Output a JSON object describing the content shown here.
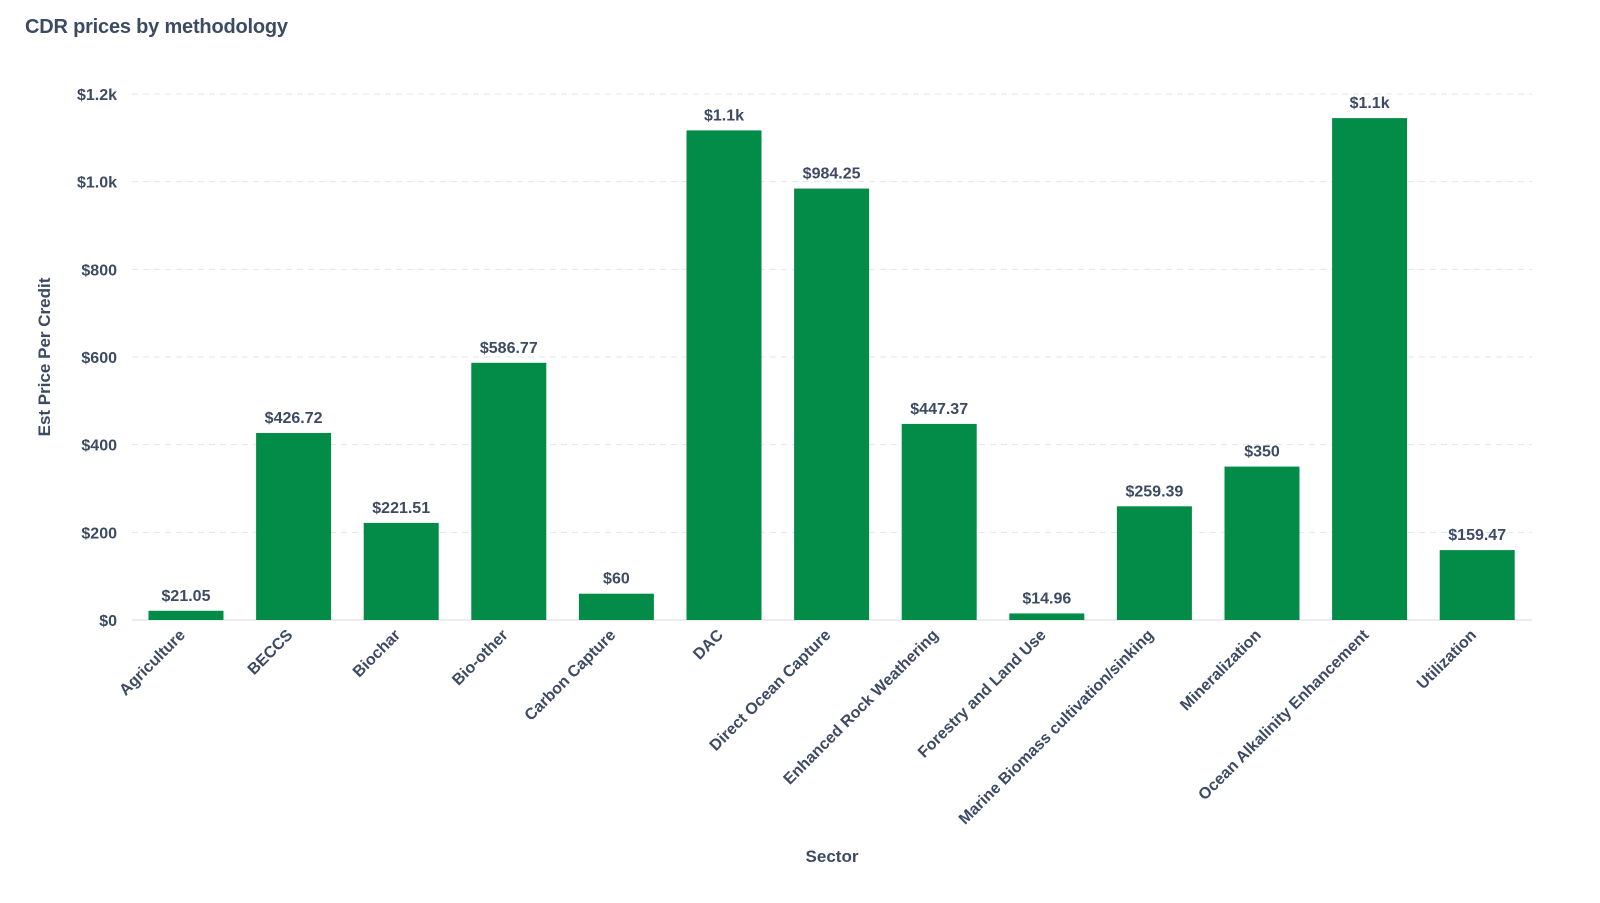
{
  "chart_data": {
    "type": "bar",
    "title": "CDR prices by methodology",
    "xlabel": "Sector",
    "ylabel": "Est Price Per Credit",
    "categories": [
      "Agriculture",
      "BECCS",
      "Biochar",
      "Bio-other",
      "Carbon Capture",
      "DAC",
      "Direct Ocean Capture",
      "Enhanced Rock Weathering",
      "Forestry and Land Use",
      "Marine Biomass cultivation/sinking",
      "Mineralization",
      "Ocean Alkalinity Enhancement",
      "Utilization"
    ],
    "values": [
      21.05,
      426.72,
      221.51,
      586.77,
      60,
      1117,
      984.25,
      447.37,
      14.96,
      259.39,
      350,
      1145,
      159.47
    ],
    "value_labels": [
      "$21.05",
      "$426.72",
      "$221.51",
      "$586.77",
      "$60",
      "$1.1k",
      "$984.25",
      "$447.37",
      "$14.96",
      "$259.39",
      "$350",
      "$1.1k",
      "$159.47"
    ],
    "y_ticks": [
      0,
      200,
      400,
      600,
      800,
      1000,
      1200
    ],
    "y_tick_labels": [
      "$0",
      "$200",
      "$400",
      "$600",
      "$800",
      "$1.0k",
      "$1.2k"
    ],
    "ylim": [
      0,
      1200
    ],
    "grid": true,
    "legend": "none",
    "bar_color": "#038c47"
  }
}
